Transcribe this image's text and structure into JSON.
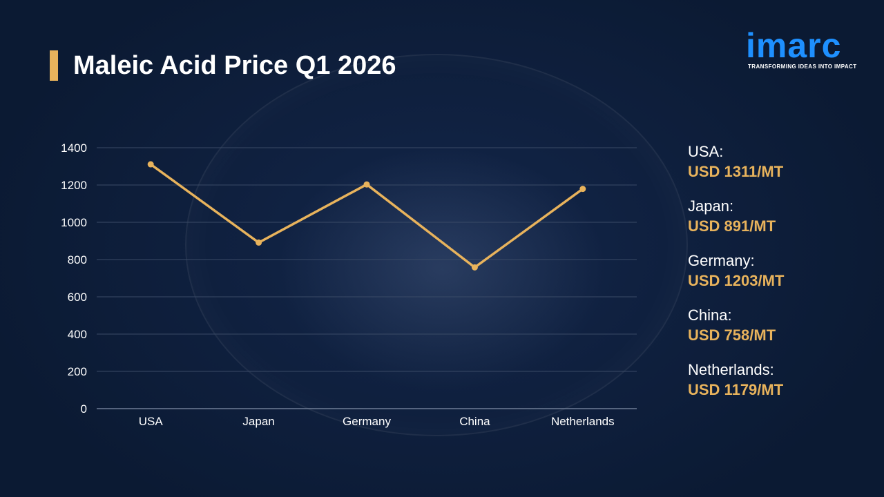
{
  "title": "Maleic Acid Price Q1 2026",
  "logo": {
    "text": "imarc",
    "tagline": "TRANSFORMING IDEAS INTO IMPACT"
  },
  "colors": {
    "background": "#0b1a33",
    "accent": "#e8b35c",
    "logo": "#1e90ff",
    "grid": "#3a4a66"
  },
  "chart_data": {
    "type": "line",
    "categories": [
      "USA",
      "Japan",
      "Germany",
      "China",
      "Netherlands"
    ],
    "values": [
      1311,
      891,
      1203,
      758,
      1179
    ],
    "ylim": [
      0,
      1400
    ],
    "yticks": [
      0,
      200,
      400,
      600,
      800,
      1000,
      1200,
      1400
    ],
    "grid": true
  },
  "legend": [
    {
      "name": "USA:",
      "value": "USD 1311/MT"
    },
    {
      "name": "Japan:",
      "value": "USD 891/MT"
    },
    {
      "name": "Germany:",
      "value": "USD 1203/MT"
    },
    {
      "name": "China:",
      "value": "USD 758/MT"
    },
    {
      "name": "Netherlands:",
      "value": "USD 1179/MT"
    }
  ]
}
